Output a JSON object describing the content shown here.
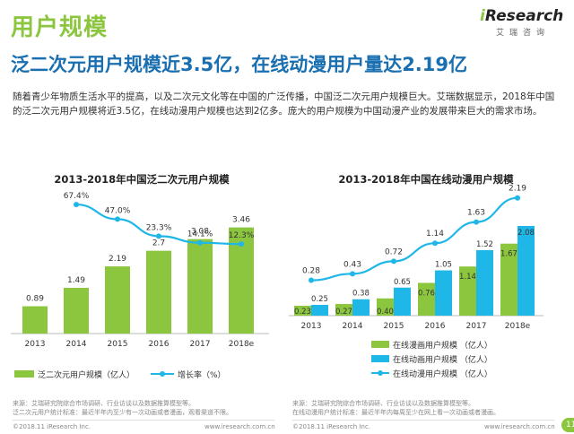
{
  "page": {
    "title": "用户规模",
    "headline": "泛二次元用户规模近3.5亿，在线动漫用户量达2.19亿",
    "description": "随着青少年物质生活水平的提高，以及二次元文化等在中国的广泛传播，中国泛二次元用户规模巨大。艾瑞数据显示，2018年中国的泛二次元用户规模将近3.5亿，在线动漫用户规模也达到2亿多。庞大的用户规模为中国动漫产业的发展带来巨大的需求市场。",
    "page_number": "11"
  },
  "logo": {
    "prefix": "i",
    "name": "Research",
    "sub": "艾瑞咨询"
  },
  "colors": {
    "green": "#8cc63f",
    "blue": "#1fb6e8",
    "brand": "#1a6fb0"
  },
  "chart_data": [
    {
      "type": "bar",
      "title": "2013-2018年中国泛二次元用户规模",
      "categories": [
        "2013",
        "2014",
        "2015",
        "2016",
        "2017",
        "2018e"
      ],
      "series": [
        {
          "name": "泛二次元用户规模（亿人）",
          "type": "bar",
          "values": [
            0.89,
            1.49,
            2.19,
            2.7,
            3.08,
            3.46
          ],
          "labels": [
            "0.89",
            "1.49",
            "2.19",
            "2.7",
            "3.08",
            "3.46"
          ]
        },
        {
          "name": "增长率（%）",
          "type": "line",
          "x": [
            "2014",
            "2015",
            "2016",
            "2017",
            "2018e"
          ],
          "values": [
            67.4,
            47.0,
            23.3,
            14.1,
            12.3
          ],
          "labels": [
            "67.4%",
            "47.0%",
            "23.3%",
            "14.1%",
            "12.3%"
          ]
        }
      ]
    },
    {
      "type": "bar",
      "title": "2013-2018年中国在线动漫用户规模",
      "categories": [
        "2013",
        "2014",
        "2015",
        "2016",
        "2017",
        "2018e"
      ],
      "series": [
        {
          "name": "在线漫画用户规模 （亿人）",
          "type": "bar",
          "values": [
            0.23,
            0.27,
            0.4,
            0.76,
            1.14,
            1.67
          ],
          "labels": [
            "0.23",
            "0.27",
            "0.40",
            "0.76",
            "1.14",
            "1.67"
          ]
        },
        {
          "name": "在线动画用户规模 （亿人）",
          "type": "bar",
          "values": [
            0.25,
            0.38,
            0.65,
            1.05,
            1.52,
            2.08
          ],
          "labels": [
            "0.25",
            "0.38",
            "0.65",
            "1.05",
            "1.52",
            "2.08"
          ]
        },
        {
          "name": "在线动漫用户规模 （亿人）",
          "type": "line",
          "values": [
            0.28,
            0.43,
            0.72,
            1.14,
            1.63,
            2.19
          ],
          "labels": [
            "0.28",
            "0.43",
            "0.72",
            "1.14",
            "1.63",
            "2.19"
          ]
        }
      ]
    }
  ],
  "footer": {
    "left": [
      "来源：艾瑞研究院综合市场调研、行业访谈以及数据推算模型等。",
      "泛二次元用户统计标准：最近半年内至少有一次动画或者漫画，观看渠道不限。"
    ],
    "right": [
      "来源：艾瑞研究院综合市场调研、行业访谈以及数据推算模型等。",
      "在线动漫用户统计标准：最近半年内每周至少在网上看一次动画或者漫画。"
    ],
    "copyright": "©2018.11 iResearch Inc.",
    "url": "www.iresearch.com.cn"
  }
}
